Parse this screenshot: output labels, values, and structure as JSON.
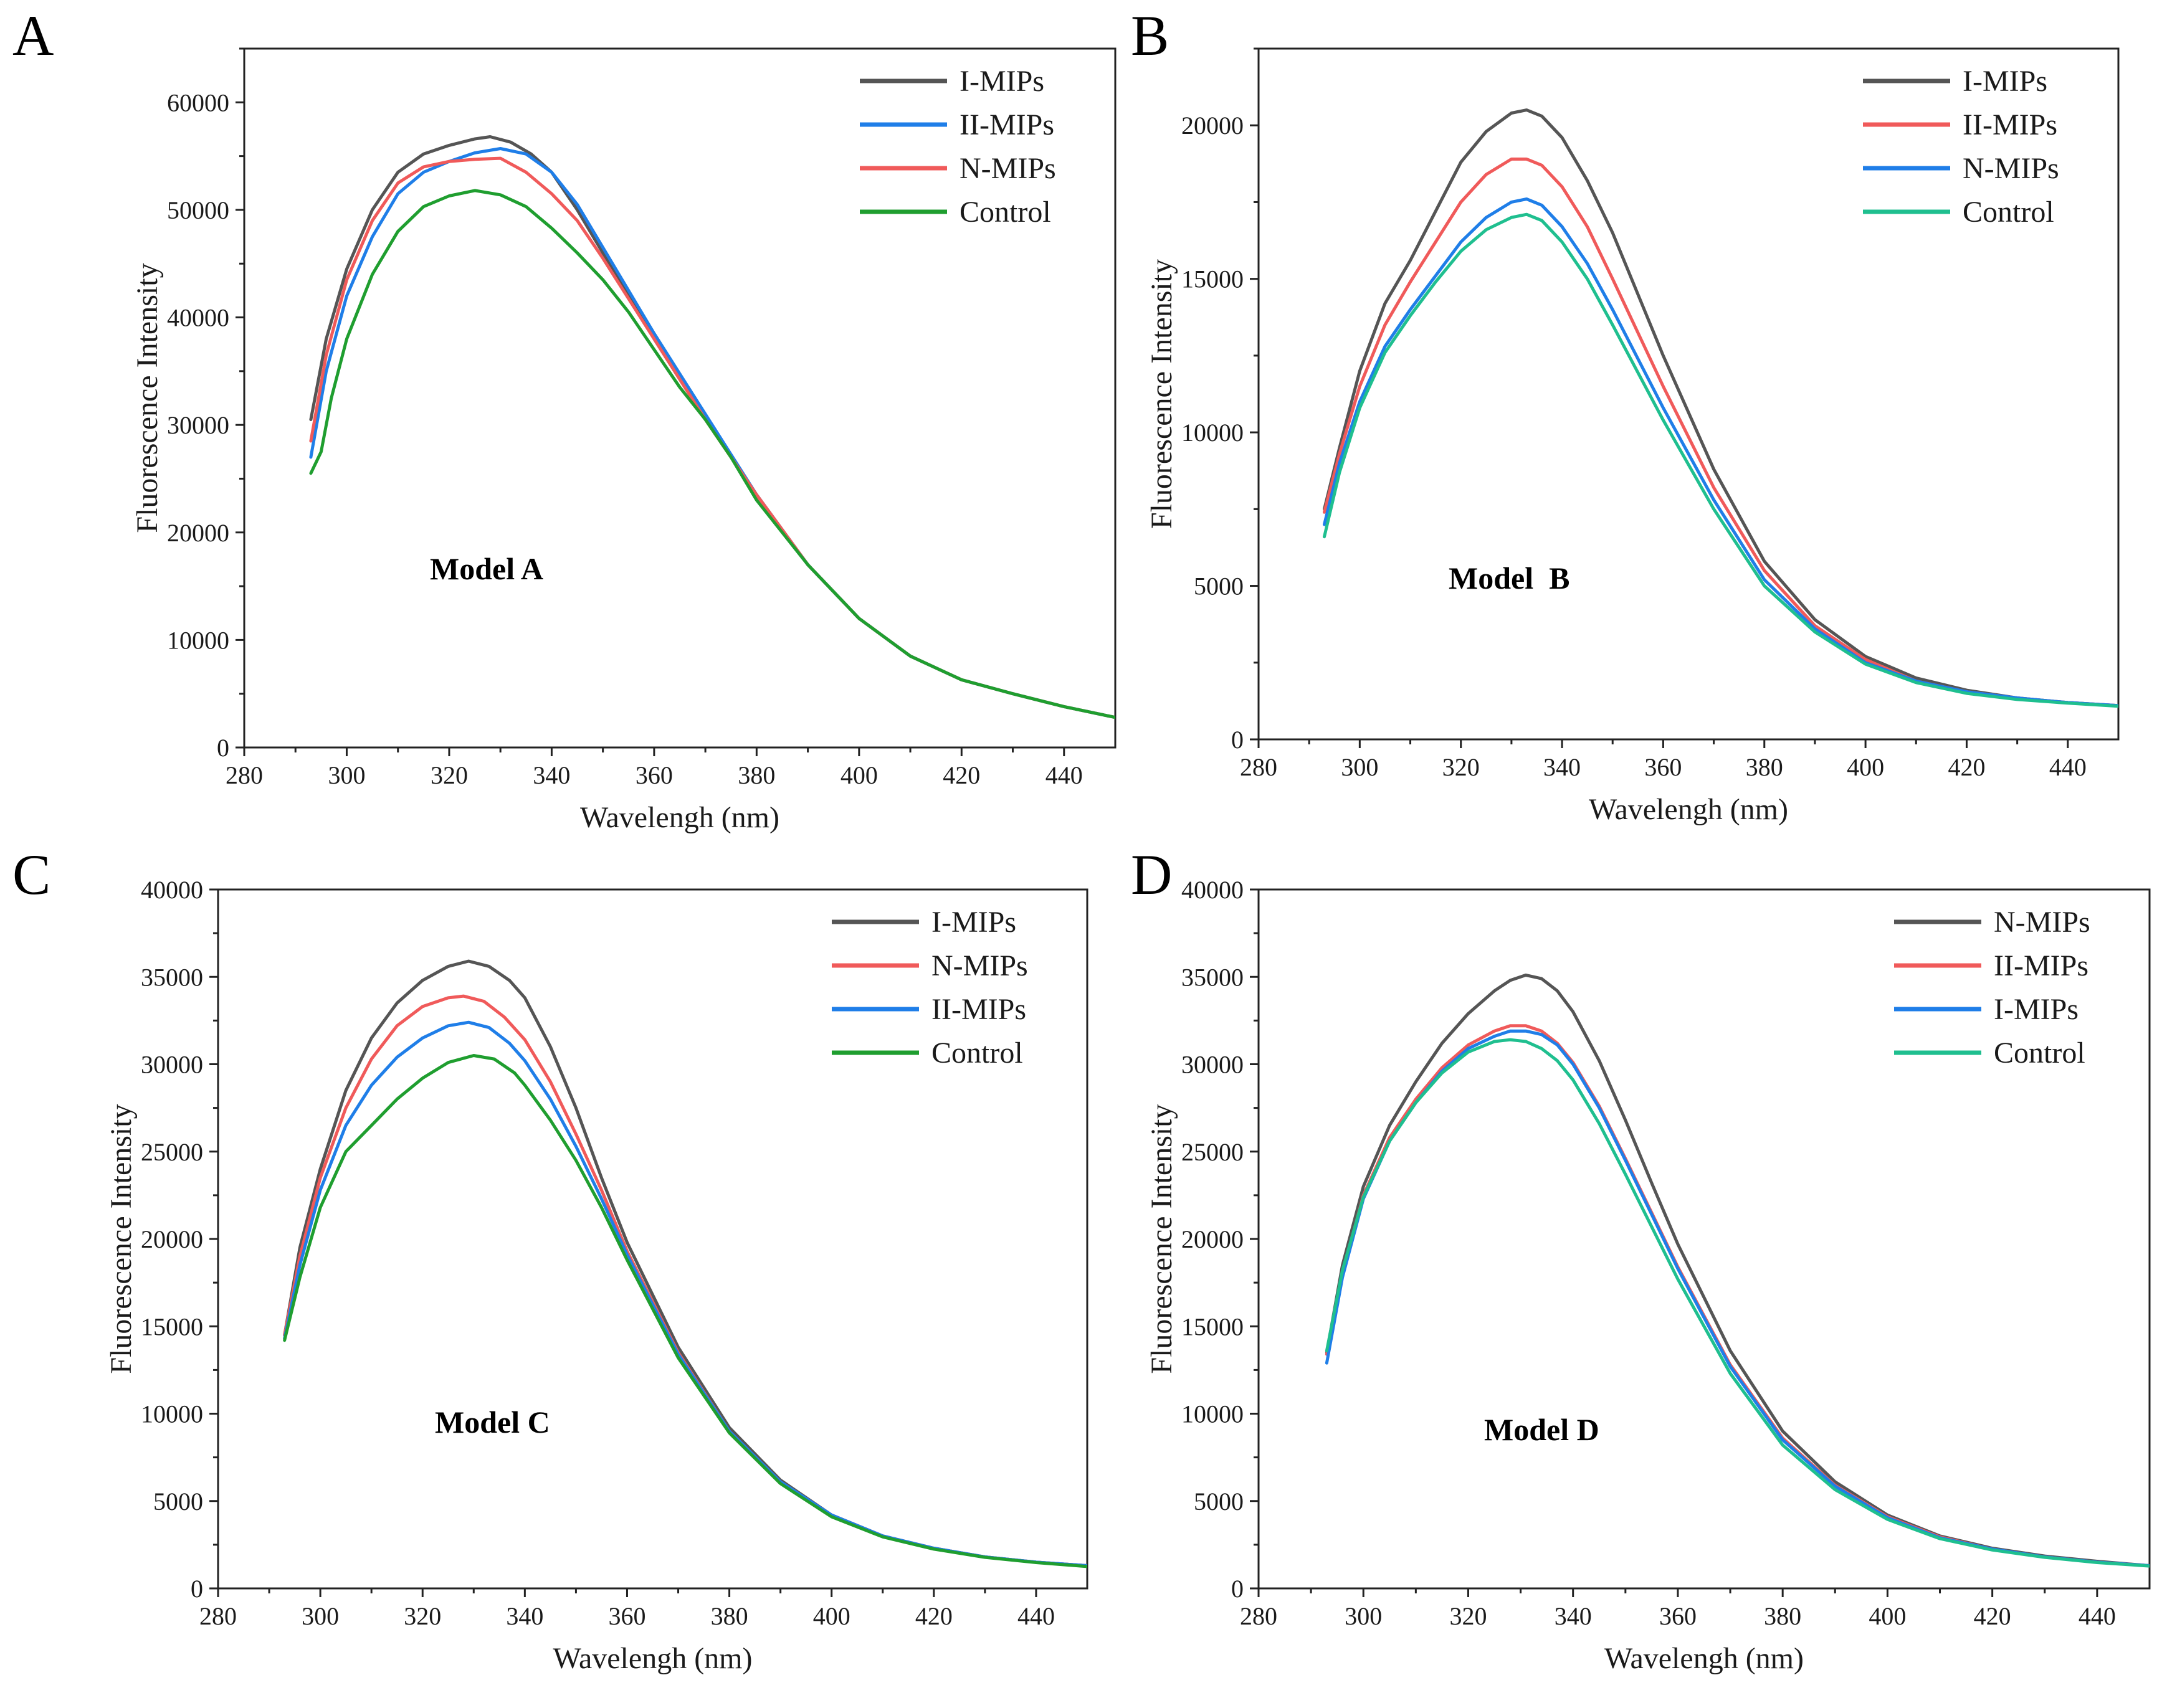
{
  "chart_data": [
    {
      "id": "A",
      "panel_label": "A",
      "type": "line",
      "xlabel": "Wavelengh (nm)",
      "ylabel": "Fluorescence Intensity",
      "xlim": [
        280,
        450
      ],
      "ylim": [
        0,
        65000
      ],
      "xticks": [
        280,
        300,
        320,
        340,
        360,
        380,
        400,
        420,
        440
      ],
      "yticks": [
        0,
        10000,
        20000,
        30000,
        40000,
        50000,
        60000
      ],
      "annotation": "Model A",
      "legend_position": "top-right",
      "series": [
        {
          "name": "I-MIPs",
          "color": "#555555",
          "x": [
            293,
            296,
            300,
            305,
            310,
            315,
            320,
            325,
            328,
            332,
            336,
            340,
            345,
            350,
            360,
            370,
            380,
            390,
            400,
            410,
            420,
            430,
            440,
            450
          ],
          "y": [
            30500,
            38000,
            44500,
            50000,
            53500,
            55200,
            56000,
            56600,
            56800,
            56300,
            55200,
            53500,
            50000,
            46000,
            38000,
            30500,
            23500,
            17000,
            12000,
            8500,
            6300,
            5000,
            3800,
            2800
          ]
        },
        {
          "name": "II-MIPs",
          "color": "#1f7ee8",
          "x": [
            293,
            296,
            300,
            305,
            310,
            315,
            320,
            325,
            330,
            335,
            340,
            345,
            350,
            360,
            370,
            380,
            390,
            400,
            410,
            420,
            430,
            440,
            450
          ],
          "y": [
            27000,
            35000,
            42000,
            47500,
            51500,
            53500,
            54500,
            55300,
            55700,
            55200,
            53500,
            50500,
            46500,
            38500,
            31000,
            23500,
            17000,
            12000,
            8500,
            6300,
            5000,
            3800,
            2800
          ]
        },
        {
          "name": "N-MIPs",
          "color": "#f05a5a",
          "x": [
            293,
            296,
            300,
            305,
            310,
            315,
            320,
            325,
            330,
            335,
            340,
            345,
            350,
            360,
            370,
            380,
            390,
            400,
            410,
            420,
            430,
            440,
            450
          ],
          "y": [
            28500,
            36500,
            43500,
            49000,
            52500,
            54000,
            54500,
            54700,
            54800,
            53500,
            51500,
            49000,
            45500,
            38000,
            30500,
            23500,
            17000,
            12000,
            8500,
            6300,
            5000,
            3800,
            2800
          ]
        },
        {
          "name": "Control",
          "color": "#1f9e2f",
          "x": [
            293,
            295,
            297,
            300,
            305,
            310,
            315,
            320,
            325,
            330,
            335,
            340,
            345,
            350,
            355,
            360,
            365,
            370,
            375,
            380,
            390,
            400,
            410,
            420,
            430,
            440,
            450
          ],
          "y": [
            25500,
            27500,
            32500,
            38000,
            44000,
            48000,
            50300,
            51300,
            51800,
            51400,
            50300,
            48300,
            46000,
            43500,
            40500,
            37000,
            33500,
            30500,
            27000,
            23000,
            17000,
            12000,
            8500,
            6300,
            5000,
            3800,
            2800
          ]
        }
      ]
    },
    {
      "id": "B",
      "panel_label": "B",
      "type": "line",
      "xlabel": "Wavelengh (nm)",
      "ylabel": "Fluorescence Intensity",
      "xlim": [
        280,
        450
      ],
      "ylim": [
        0,
        22500
      ],
      "xticks": [
        280,
        300,
        320,
        340,
        360,
        380,
        400,
        420,
        440
      ],
      "yticks": [
        0,
        5000,
        10000,
        15000,
        20000
      ],
      "annotation": "Model  B",
      "legend_position": "top-right",
      "series": [
        {
          "name": "I-MIPs",
          "color": "#555555",
          "x": [
            293,
            296,
            300,
            305,
            310,
            315,
            320,
            325,
            330,
            333,
            336,
            340,
            345,
            350,
            355,
            360,
            370,
            380,
            390,
            400,
            410,
            420,
            430,
            440,
            450
          ],
          "y": [
            7500,
            9500,
            12000,
            14200,
            15600,
            17200,
            18800,
            19800,
            20400,
            20500,
            20300,
            19600,
            18200,
            16500,
            14500,
            12500,
            8800,
            5800,
            3900,
            2700,
            2000,
            1600,
            1350,
            1200,
            1100
          ]
        },
        {
          "name": "II-MIPs",
          "color": "#f05a5a",
          "x": [
            293,
            296,
            300,
            305,
            310,
            315,
            320,
            325,
            330,
            333,
            336,
            340,
            345,
            350,
            360,
            370,
            380,
            390,
            400,
            410,
            420,
            430,
            440,
            450
          ],
          "y": [
            7400,
            9300,
            11500,
            13500,
            14900,
            16200,
            17500,
            18400,
            18900,
            18900,
            18700,
            18000,
            16700,
            15000,
            11500,
            8200,
            5500,
            3700,
            2600,
            1900,
            1550,
            1350,
            1200,
            1100
          ]
        },
        {
          "name": "N-MIPs",
          "color": "#1f7ee8",
          "x": [
            293,
            296,
            300,
            305,
            310,
            315,
            320,
            325,
            330,
            333,
            336,
            340,
            345,
            350,
            360,
            370,
            380,
            390,
            400,
            410,
            420,
            430,
            440,
            450
          ],
          "y": [
            7000,
            9000,
            11000,
            12800,
            14000,
            15100,
            16200,
            17000,
            17500,
            17600,
            17400,
            16700,
            15500,
            14000,
            10800,
            7800,
            5200,
            3600,
            2500,
            1900,
            1550,
            1350,
            1200,
            1100
          ]
        },
        {
          "name": "Control",
          "color": "#1fbf8f",
          "x": [
            293,
            296,
            300,
            305,
            310,
            315,
            320,
            325,
            330,
            333,
            336,
            340,
            345,
            350,
            360,
            370,
            380,
            390,
            400,
            410,
            420,
            430,
            440,
            450
          ],
          "y": [
            6600,
            8700,
            10800,
            12600,
            13800,
            14900,
            15900,
            16600,
            17000,
            17100,
            16900,
            16200,
            15000,
            13500,
            10400,
            7500,
            5000,
            3500,
            2450,
            1850,
            1500,
            1300,
            1180,
            1080
          ]
        }
      ]
    },
    {
      "id": "C",
      "panel_label": "C",
      "type": "line",
      "xlabel": "Wavelengh (nm)",
      "ylabel": "Fluorescence Intensity",
      "xlim": [
        280,
        450
      ],
      "ylim": [
        0,
        40000
      ],
      "xticks": [
        280,
        300,
        320,
        340,
        360,
        380,
        400,
        420,
        440
      ],
      "yticks": [
        0,
        5000,
        10000,
        15000,
        20000,
        25000,
        30000,
        35000,
        40000
      ],
      "annotation": "Model C",
      "legend_position": "top-right",
      "series": [
        {
          "name": "I-MIPs",
          "color": "#555555",
          "x": [
            293,
            296,
            300,
            305,
            310,
            315,
            320,
            325,
            329,
            333,
            337,
            340,
            345,
            350,
            355,
            360,
            370,
            380,
            390,
            400,
            410,
            420,
            430,
            440,
            450
          ],
          "y": [
            14500,
            19500,
            24000,
            28500,
            31500,
            33500,
            34800,
            35600,
            35900,
            35600,
            34800,
            33800,
            31000,
            27500,
            23500,
            19800,
            13800,
            9200,
            6200,
            4200,
            3000,
            2300,
            1800,
            1500,
            1300
          ]
        },
        {
          "name": "N-MIPs",
          "color": "#f05a5a",
          "x": [
            293,
            296,
            300,
            305,
            310,
            315,
            320,
            325,
            328,
            332,
            336,
            340,
            345,
            350,
            355,
            360,
            370,
            380,
            390,
            400,
            410,
            420,
            430,
            440,
            450
          ],
          "y": [
            14500,
            19000,
            23500,
            27500,
            30300,
            32200,
            33300,
            33800,
            33900,
            33600,
            32700,
            31400,
            29000,
            26000,
            22800,
            19300,
            13500,
            9000,
            6100,
            4200,
            3000,
            2300,
            1800,
            1500,
            1300
          ]
        },
        {
          "name": "II-MIPs",
          "color": "#1f7ee8",
          "x": [
            293,
            296,
            300,
            305,
            310,
            315,
            320,
            325,
            329,
            333,
            337,
            340,
            345,
            350,
            355,
            360,
            370,
            380,
            390,
            400,
            410,
            420,
            430,
            440,
            450
          ],
          "y": [
            14300,
            18500,
            22800,
            26500,
            28800,
            30400,
            31500,
            32200,
            32400,
            32100,
            31200,
            30200,
            28000,
            25300,
            22300,
            19100,
            13400,
            9000,
            6100,
            4200,
            3000,
            2300,
            1800,
            1500,
            1300
          ]
        },
        {
          "name": "Control",
          "color": "#1f9e2f",
          "x": [
            293,
            296,
            300,
            305,
            310,
            315,
            320,
            325,
            330,
            334,
            338,
            340,
            345,
            350,
            355,
            360,
            370,
            380,
            390,
            400,
            410,
            420,
            430,
            440,
            450
          ],
          "y": [
            14200,
            17800,
            21800,
            25000,
            26500,
            28000,
            29200,
            30100,
            30500,
            30300,
            29500,
            28800,
            26800,
            24500,
            21800,
            18800,
            13200,
            8900,
            6000,
            4100,
            2950,
            2250,
            1780,
            1480,
            1250
          ]
        }
      ]
    },
    {
      "id": "D",
      "panel_label": "D",
      "type": "line",
      "xlabel": "Wavelengh (nm)",
      "ylabel": "Fluorescence Intensity",
      "xlim": [
        280,
        450
      ],
      "ylim": [
        0,
        40000
      ],
      "xticks": [
        280,
        300,
        320,
        340,
        360,
        380,
        400,
        420,
        440
      ],
      "yticks": [
        0,
        5000,
        10000,
        15000,
        20000,
        25000,
        30000,
        35000,
        40000
      ],
      "annotation": "Model D",
      "legend_position": "top-right",
      "series": [
        {
          "name": "N-MIPs",
          "color": "#555555",
          "x": [
            293,
            296,
            300,
            305,
            310,
            315,
            320,
            325,
            328,
            331,
            334,
            337,
            340,
            345,
            350,
            355,
            360,
            370,
            380,
            390,
            400,
            410,
            420,
            430,
            440,
            450
          ],
          "y": [
            13500,
            18500,
            23000,
            26500,
            29000,
            31200,
            32900,
            34200,
            34800,
            35100,
            34900,
            34200,
            33000,
            30200,
            26800,
            23200,
            19700,
            13600,
            9000,
            6100,
            4200,
            3000,
            2300,
            1850,
            1550,
            1300
          ]
        },
        {
          "name": "II-MIPs",
          "color": "#f05a5a",
          "x": [
            293,
            296,
            300,
            305,
            310,
            315,
            320,
            325,
            328,
            331,
            334,
            337,
            340,
            345,
            350,
            355,
            360,
            370,
            380,
            390,
            400,
            410,
            420,
            430,
            440,
            450
          ],
          "y": [
            13400,
            18000,
            22500,
            25800,
            28000,
            29800,
            31100,
            31900,
            32200,
            32200,
            31900,
            31200,
            30100,
            27600,
            24600,
            21500,
            18400,
            12800,
            8600,
            5900,
            4100,
            2950,
            2250,
            1800,
            1500,
            1300
          ]
        },
        {
          "name": "I-MIPs",
          "color": "#1f7ee8",
          "x": [
            293,
            296,
            300,
            305,
            310,
            315,
            320,
            325,
            328,
            331,
            334,
            337,
            340,
            345,
            350,
            355,
            360,
            370,
            380,
            390,
            400,
            410,
            420,
            430,
            440,
            450
          ],
          "y": [
            12900,
            17800,
            22300,
            25600,
            27800,
            29600,
            30900,
            31600,
            31900,
            31900,
            31700,
            31100,
            30000,
            27500,
            24500,
            21400,
            18300,
            12700,
            8500,
            5850,
            4050,
            2900,
            2250,
            1800,
            1500,
            1300
          ]
        },
        {
          "name": "Control",
          "color": "#1fbf8f",
          "x": [
            293,
            296,
            300,
            305,
            310,
            315,
            320,
            325,
            328,
            331,
            334,
            337,
            340,
            345,
            350,
            355,
            360,
            370,
            380,
            390,
            400,
            410,
            420,
            430,
            440,
            450
          ],
          "y": [
            13600,
            18200,
            22400,
            25600,
            27800,
            29500,
            30700,
            31300,
            31400,
            31300,
            30900,
            30200,
            29100,
            26600,
            23700,
            20700,
            17700,
            12300,
            8200,
            5650,
            3950,
            2850,
            2200,
            1780,
            1480,
            1280
          ]
        }
      ]
    }
  ]
}
